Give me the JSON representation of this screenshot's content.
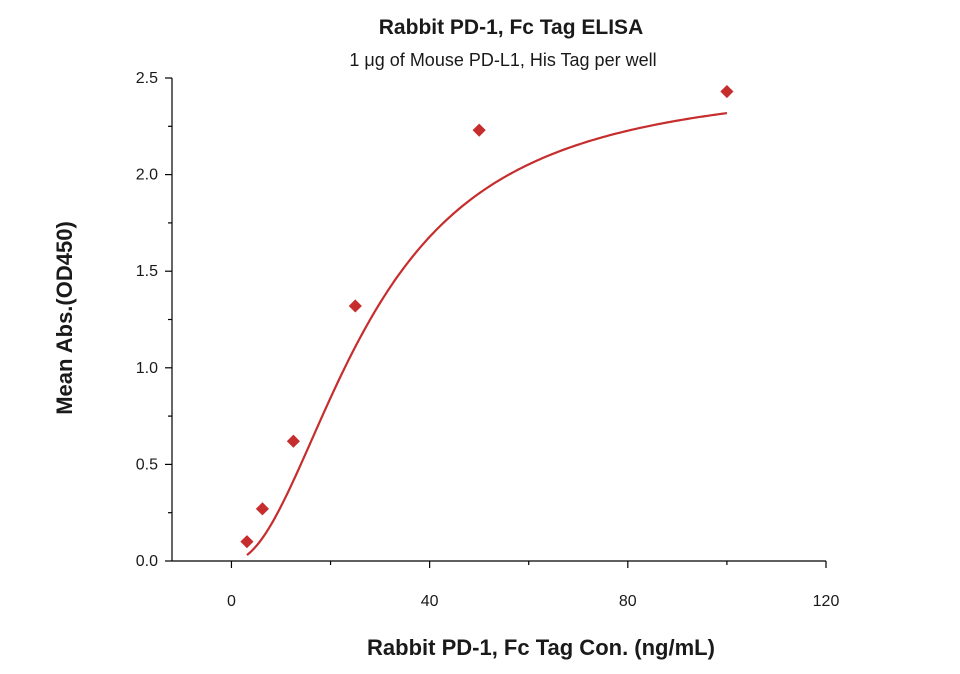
{
  "chart_data": {
    "type": "scatter",
    "title": "Rabbit PD-1, Fc Tag ELISA",
    "subtitle": "1 μg of Mouse PD-L1, His Tag per well",
    "xlabel": "Rabbit PD-1, Fc Tag Con. (ng/mL)",
    "ylabel": "Mean Abs.(OD450)",
    "xlim": [
      -12,
      120
    ],
    "ylim": [
      0,
      2.5
    ],
    "x_ticks": [
      0,
      40,
      80,
      120
    ],
    "x_tick_labels": [
      "0",
      "40",
      "80",
      "120"
    ],
    "y_ticks": [
      0.0,
      0.5,
      1.0,
      1.5,
      2.0,
      2.5
    ],
    "y_tick_labels": [
      "0.0",
      "0.5",
      "1.0",
      "1.5",
      "2.0",
      "2.5"
    ],
    "grid": false,
    "series": [
      {
        "marker": "diamond",
        "color": "#c62d2d",
        "x": [
          3.125,
          6.25,
          12.5,
          25,
          50,
          100
        ],
        "y": [
          0.1,
          0.27,
          0.62,
          1.32,
          2.23,
          2.43
        ]
      }
    ],
    "fit_curve": {
      "model": "4PL",
      "color": "#c62d2d",
      "x_range": [
        3.125,
        100
      ],
      "bottom": 0.0,
      "top": 2.5,
      "ec50": 28,
      "hill": 2.0
    }
  }
}
